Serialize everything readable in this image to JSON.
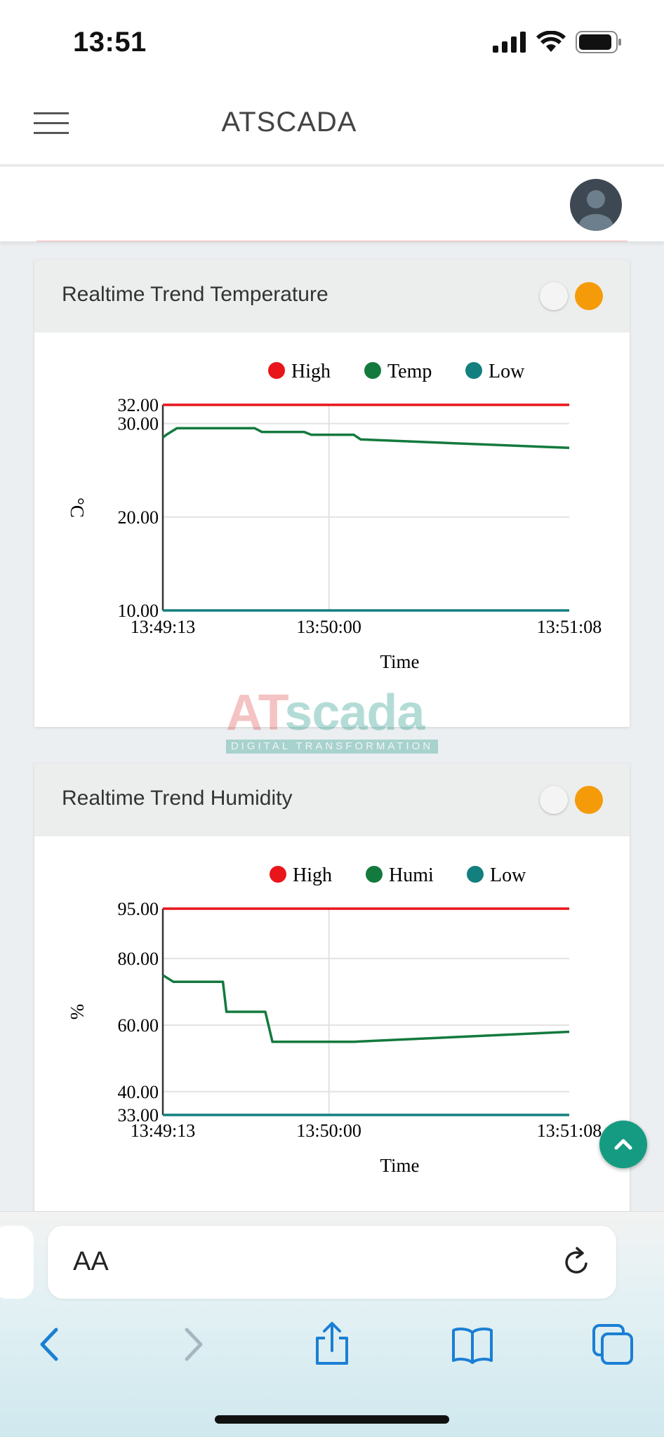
{
  "status_bar": {
    "time": "13:51"
  },
  "header": {
    "title": "ATSCADA"
  },
  "cards": [
    {
      "title": "Realtime Trend Temperature",
      "chart_data": {
        "type": "line",
        "legend": [
          "High",
          "Temp",
          "Low"
        ],
        "colors": {
          "High": "#e8151b",
          "Temp": "#137a3d",
          "Low": "#137f7f"
        },
        "ylabel": "°C",
        "xlabel": "Time",
        "ylim": [
          10,
          32
        ],
        "yticks": [
          "32.00",
          "30.00",
          "20.00",
          "10.00"
        ],
        "xticks": [
          "13:49:13",
          "13:50:00",
          "13:51:08"
        ],
        "x": [
          "13:49:13",
          "13:49:14",
          "13:49:17",
          "13:49:39",
          "13:49:41",
          "13:49:53",
          "13:49:55",
          "13:50:07",
          "13:50:09",
          "13:51:08"
        ],
        "series": [
          {
            "name": "High",
            "values": [
              32,
              32,
              32,
              32,
              32,
              32,
              32,
              32,
              32,
              32
            ]
          },
          {
            "name": "Temp",
            "values": [
              28.5,
              28.8,
              29.5,
              29.5,
              29.1,
              29.1,
              28.8,
              28.8,
              28.3,
              27.4
            ]
          },
          {
            "name": "Low",
            "values": [
              10,
              10,
              10,
              10,
              10,
              10,
              10,
              10,
              10,
              10
            ]
          }
        ]
      }
    },
    {
      "title": "Realtime Trend Humidity",
      "chart_data": {
        "type": "line",
        "legend": [
          "High",
          "Humi",
          "Low"
        ],
        "colors": {
          "High": "#e8151b",
          "Humi": "#137a3d",
          "Low": "#137f7f"
        },
        "ylabel": "%",
        "xlabel": "Time",
        "ylim": [
          33,
          95
        ],
        "yticks": [
          "95.00",
          "80.00",
          "60.00",
          "40.00",
          "33.00"
        ],
        "xticks": [
          "13:49:13",
          "13:50:00",
          "13:51:08"
        ],
        "x": [
          "13:49:13",
          "13:49:16",
          "13:49:30",
          "13:49:31",
          "13:49:42",
          "13:49:44",
          "13:50:07",
          "13:51:08"
        ],
        "series": [
          {
            "name": "High",
            "values": [
              95,
              95,
              95,
              95,
              95,
              95,
              95,
              95
            ]
          },
          {
            "name": "Humi",
            "values": [
              75,
              73,
              73,
              64,
              64,
              55,
              55,
              58
            ]
          },
          {
            "name": "Low",
            "values": [
              33,
              33,
              33,
              33,
              33,
              33,
              33,
              33
            ]
          }
        ]
      }
    }
  ],
  "watermark": {
    "brand_a": "AT",
    "brand_b": "scada",
    "tagline": "DIGITAL TRANSFORMATION"
  },
  "browser": {
    "aa_label": "AA",
    "url_value": ""
  },
  "icons": {
    "menu": "hamburger-icon",
    "avatar": "user-avatar-icon",
    "scroll_top": "chevron-up-icon",
    "reload": "reload-icon",
    "back": "chevron-left-icon",
    "forward": "chevron-right-icon",
    "share": "share-icon",
    "bookmarks": "book-icon",
    "tabs": "tabs-icon"
  }
}
